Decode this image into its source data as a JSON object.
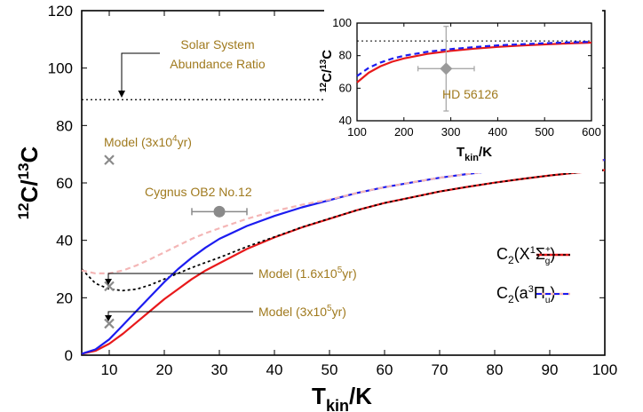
{
  "chart_data": [
    {
      "type": "line",
      "xlabel": "T_kin/K",
      "ylabel": "12C/13C",
      "xlim": [
        5,
        100
      ],
      "ylim": [
        0,
        120
      ],
      "xticks": [
        10,
        20,
        30,
        40,
        50,
        60,
        70,
        80,
        90,
        100
      ],
      "yticks": [
        0,
        20,
        40,
        60,
        80,
        100,
        120
      ],
      "x": [
        5,
        7.5,
        10,
        12.5,
        15,
        17.5,
        20,
        22.5,
        25,
        27.5,
        30,
        35,
        40,
        45,
        50,
        55,
        60,
        65,
        70,
        75,
        80,
        85,
        90,
        95,
        100
      ],
      "series": [
        {
          "name": "C2(X1Σg+) full",
          "style": "solid",
          "color": "#e8191b",
          "values": [
            0.5,
            1.5,
            4,
            7.5,
            11.5,
            15.5,
            19.5,
            23,
            26.5,
            29.5,
            32,
            37,
            41,
            44.5,
            47.5,
            50.5,
            53,
            55,
            57,
            58.6,
            60.1,
            61.4,
            62.6,
            63.6,
            64.5
          ]
        },
        {
          "name": "C2(X1Σg+) approx",
          "style": "dotted",
          "color": "#000000",
          "values": [
            30,
            25,
            23,
            22.5,
            23,
            24.5,
            26.5,
            28.5,
            30.5,
            32.3,
            34,
            37.8,
            41.2,
            44.6,
            47.6,
            50.5,
            53,
            55,
            57,
            58.6,
            60.1,
            61.4,
            62.6,
            63.6,
            64.5
          ]
        },
        {
          "name": "C2(a3Πu) full",
          "style": "solid",
          "color": "#1c1cf0",
          "values": [
            0.5,
            2,
            5.5,
            10.5,
            15.5,
            20.5,
            25.5,
            30,
            34,
            37.5,
            40.5,
            45,
            48.5,
            51.5,
            54,
            56.5,
            58.5,
            60.2,
            61.8,
            63.1,
            64.3,
            65.4,
            66.4,
            67.3,
            68
          ]
        },
        {
          "name": "C2(a3Πu) approx",
          "style": "dashed",
          "color": "#f4b6b6",
          "values": [
            29.5,
            28.5,
            28.5,
            29.5,
            31.3,
            33.5,
            35.8,
            38.2,
            40.5,
            42.5,
            44.2,
            47.5,
            50.2,
            52.4,
            54.2,
            56.5,
            58.5,
            60.2,
            61.8,
            63.1,
            64.3,
            65.4,
            66.4,
            67.3,
            68
          ]
        }
      ],
      "reference_line": {
        "y": 89,
        "label_line1": "Solar System",
        "label_line2": "Abundance Ratio"
      },
      "points": [
        {
          "label": "Model (3x10",
          "sup": "4",
          "tail": "yr)",
          "x": 10,
          "y": 68,
          "marker": "x"
        },
        {
          "label": "Model (1.6x10",
          "sup": "5",
          "tail": "yr)",
          "x": 10,
          "y": 24,
          "marker": "x"
        },
        {
          "label": "Model (3x10",
          "sup": "5",
          "tail": "yr)",
          "x": 10,
          "y": 11,
          "marker": "x"
        },
        {
          "label": "Cygnus OB2 No.12",
          "x": 30,
          "y": 50,
          "xerr": 5,
          "marker": "circle"
        }
      ],
      "legend": {
        "position": "bottom-right",
        "entries": [
          "C2(X1Σg+)",
          "C2(a3Πu)"
        ]
      }
    },
    {
      "type": "line",
      "role": "inset",
      "xlabel": "T_kin/K",
      "ylabel": "12C/13C",
      "xlim": [
        100,
        600
      ],
      "ylim": [
        40,
        100
      ],
      "xticks": [
        100,
        200,
        300,
        400,
        500,
        600
      ],
      "yticks": [
        40,
        60,
        80,
        100
      ],
      "x": [
        100,
        125,
        150,
        175,
        200,
        250,
        300,
        350,
        400,
        450,
        500,
        550,
        600
      ],
      "series": [
        {
          "name": "C2(X1Σg+)",
          "color": "#e8191b",
          "values": [
            63.5,
            69.5,
            73.5,
            76.3,
            78.3,
            81.1,
            82.9,
            84.3,
            85.4,
            86.2,
            86.9,
            87.5,
            88
          ]
        },
        {
          "name": "C2(a3Πu)",
          "color": "#1c1cf0",
          "values": [
            67.5,
            72.5,
            75.8,
            78.2,
            79.9,
            82.4,
            84,
            85.3,
            86.3,
            87,
            87.6,
            88.1,
            88.5
          ]
        }
      ],
      "reference_line": {
        "y": 89
      },
      "point": {
        "label": "HD 56126",
        "x": 290,
        "y": 72,
        "xerr": 60,
        "yerr": 26,
        "marker": "diamond"
      }
    }
  ],
  "text": {
    "main_xlabel": "T",
    "main_xlabel_sub": "kin",
    "main_xlabel_tail": "/K",
    "ylabel_sup1": "12",
    "ylabel_mid": "C/",
    "ylabel_sup2": "13",
    "ylabel_tail": "C",
    "leg1_base": "C",
    "leg1_sub": "2",
    "leg1_open": "(X",
    "leg1_sup": "1",
    "leg1_sym": "Σ",
    "leg1_symsup": "+",
    "leg1_symsub": "g",
    "leg1_close": ")",
    "leg2_base": "C",
    "leg2_sub": "2",
    "leg2_open": "(a",
    "leg2_sup": "3",
    "leg2_sym": "Π",
    "leg2_symsub": "u",
    "leg2_close": ")"
  }
}
